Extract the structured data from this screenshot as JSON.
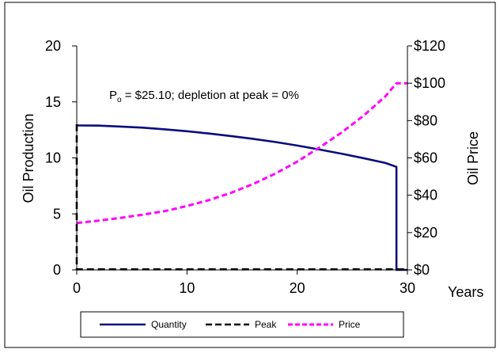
{
  "chart_data": {
    "type": "line",
    "title": "",
    "annotation": {
      "prefix": "P",
      "subscript": "o",
      "rest": " = $25.10; depletion at peak = 0%"
    },
    "x_axis": {
      "label": "Years",
      "range": [
        0,
        30
      ],
      "ticks": [
        0,
        10,
        20,
        30
      ],
      "tick_labels": [
        "0",
        "10",
        "20",
        "30"
      ]
    },
    "y_axis_left": {
      "label": "Oil Production",
      "range": [
        0,
        20
      ],
      "ticks": [
        0,
        5,
        10,
        15,
        20
      ],
      "tick_labels": [
        "0",
        "5",
        "10",
        "15",
        "20"
      ]
    },
    "y_axis_right": {
      "label": "Oil Price",
      "range": [
        0,
        120
      ],
      "ticks": [
        0,
        20,
        40,
        60,
        80,
        100,
        120
      ],
      "tick_labels": [
        "$0",
        "$20",
        "$40",
        "$60",
        "$80",
        "$100",
        "$120"
      ]
    },
    "grid": false,
    "legend_position": "bottom",
    "series": [
      {
        "name": "Quantity",
        "axis": "left",
        "style": "solid",
        "color": "#0c0c7c",
        "x": [
          0,
          2,
          4,
          6,
          8,
          10,
          12,
          14,
          16,
          18,
          20,
          22,
          24,
          26,
          28,
          29,
          29,
          30
        ],
        "y": [
          12.9,
          12.88,
          12.8,
          12.7,
          12.55,
          12.38,
          12.18,
          11.95,
          11.7,
          11.42,
          11.1,
          10.75,
          10.38,
          9.98,
          9.55,
          9.2,
          0,
          0
        ]
      },
      {
        "name": "Peak",
        "axis": "left",
        "style": "dashed",
        "color": "#000000",
        "x": [
          0,
          0,
          0.3,
          30
        ],
        "y": [
          13.0,
          0.05,
          0.05,
          0.05
        ]
      },
      {
        "name": "Price",
        "axis": "right",
        "style": "dashed",
        "color": "#ff00ff",
        "x": [
          0,
          2,
          4,
          6,
          8,
          10,
          12,
          14,
          16,
          18,
          20,
          22,
          24,
          26,
          28,
          29,
          30
        ],
        "y": [
          25.1,
          26.4,
          27.9,
          29.6,
          31.5,
          34.2,
          37.4,
          41.3,
          46.0,
          51.5,
          58.0,
          65.5,
          73.5,
          82.5,
          93.0,
          100.0,
          100.0
        ]
      }
    ]
  }
}
